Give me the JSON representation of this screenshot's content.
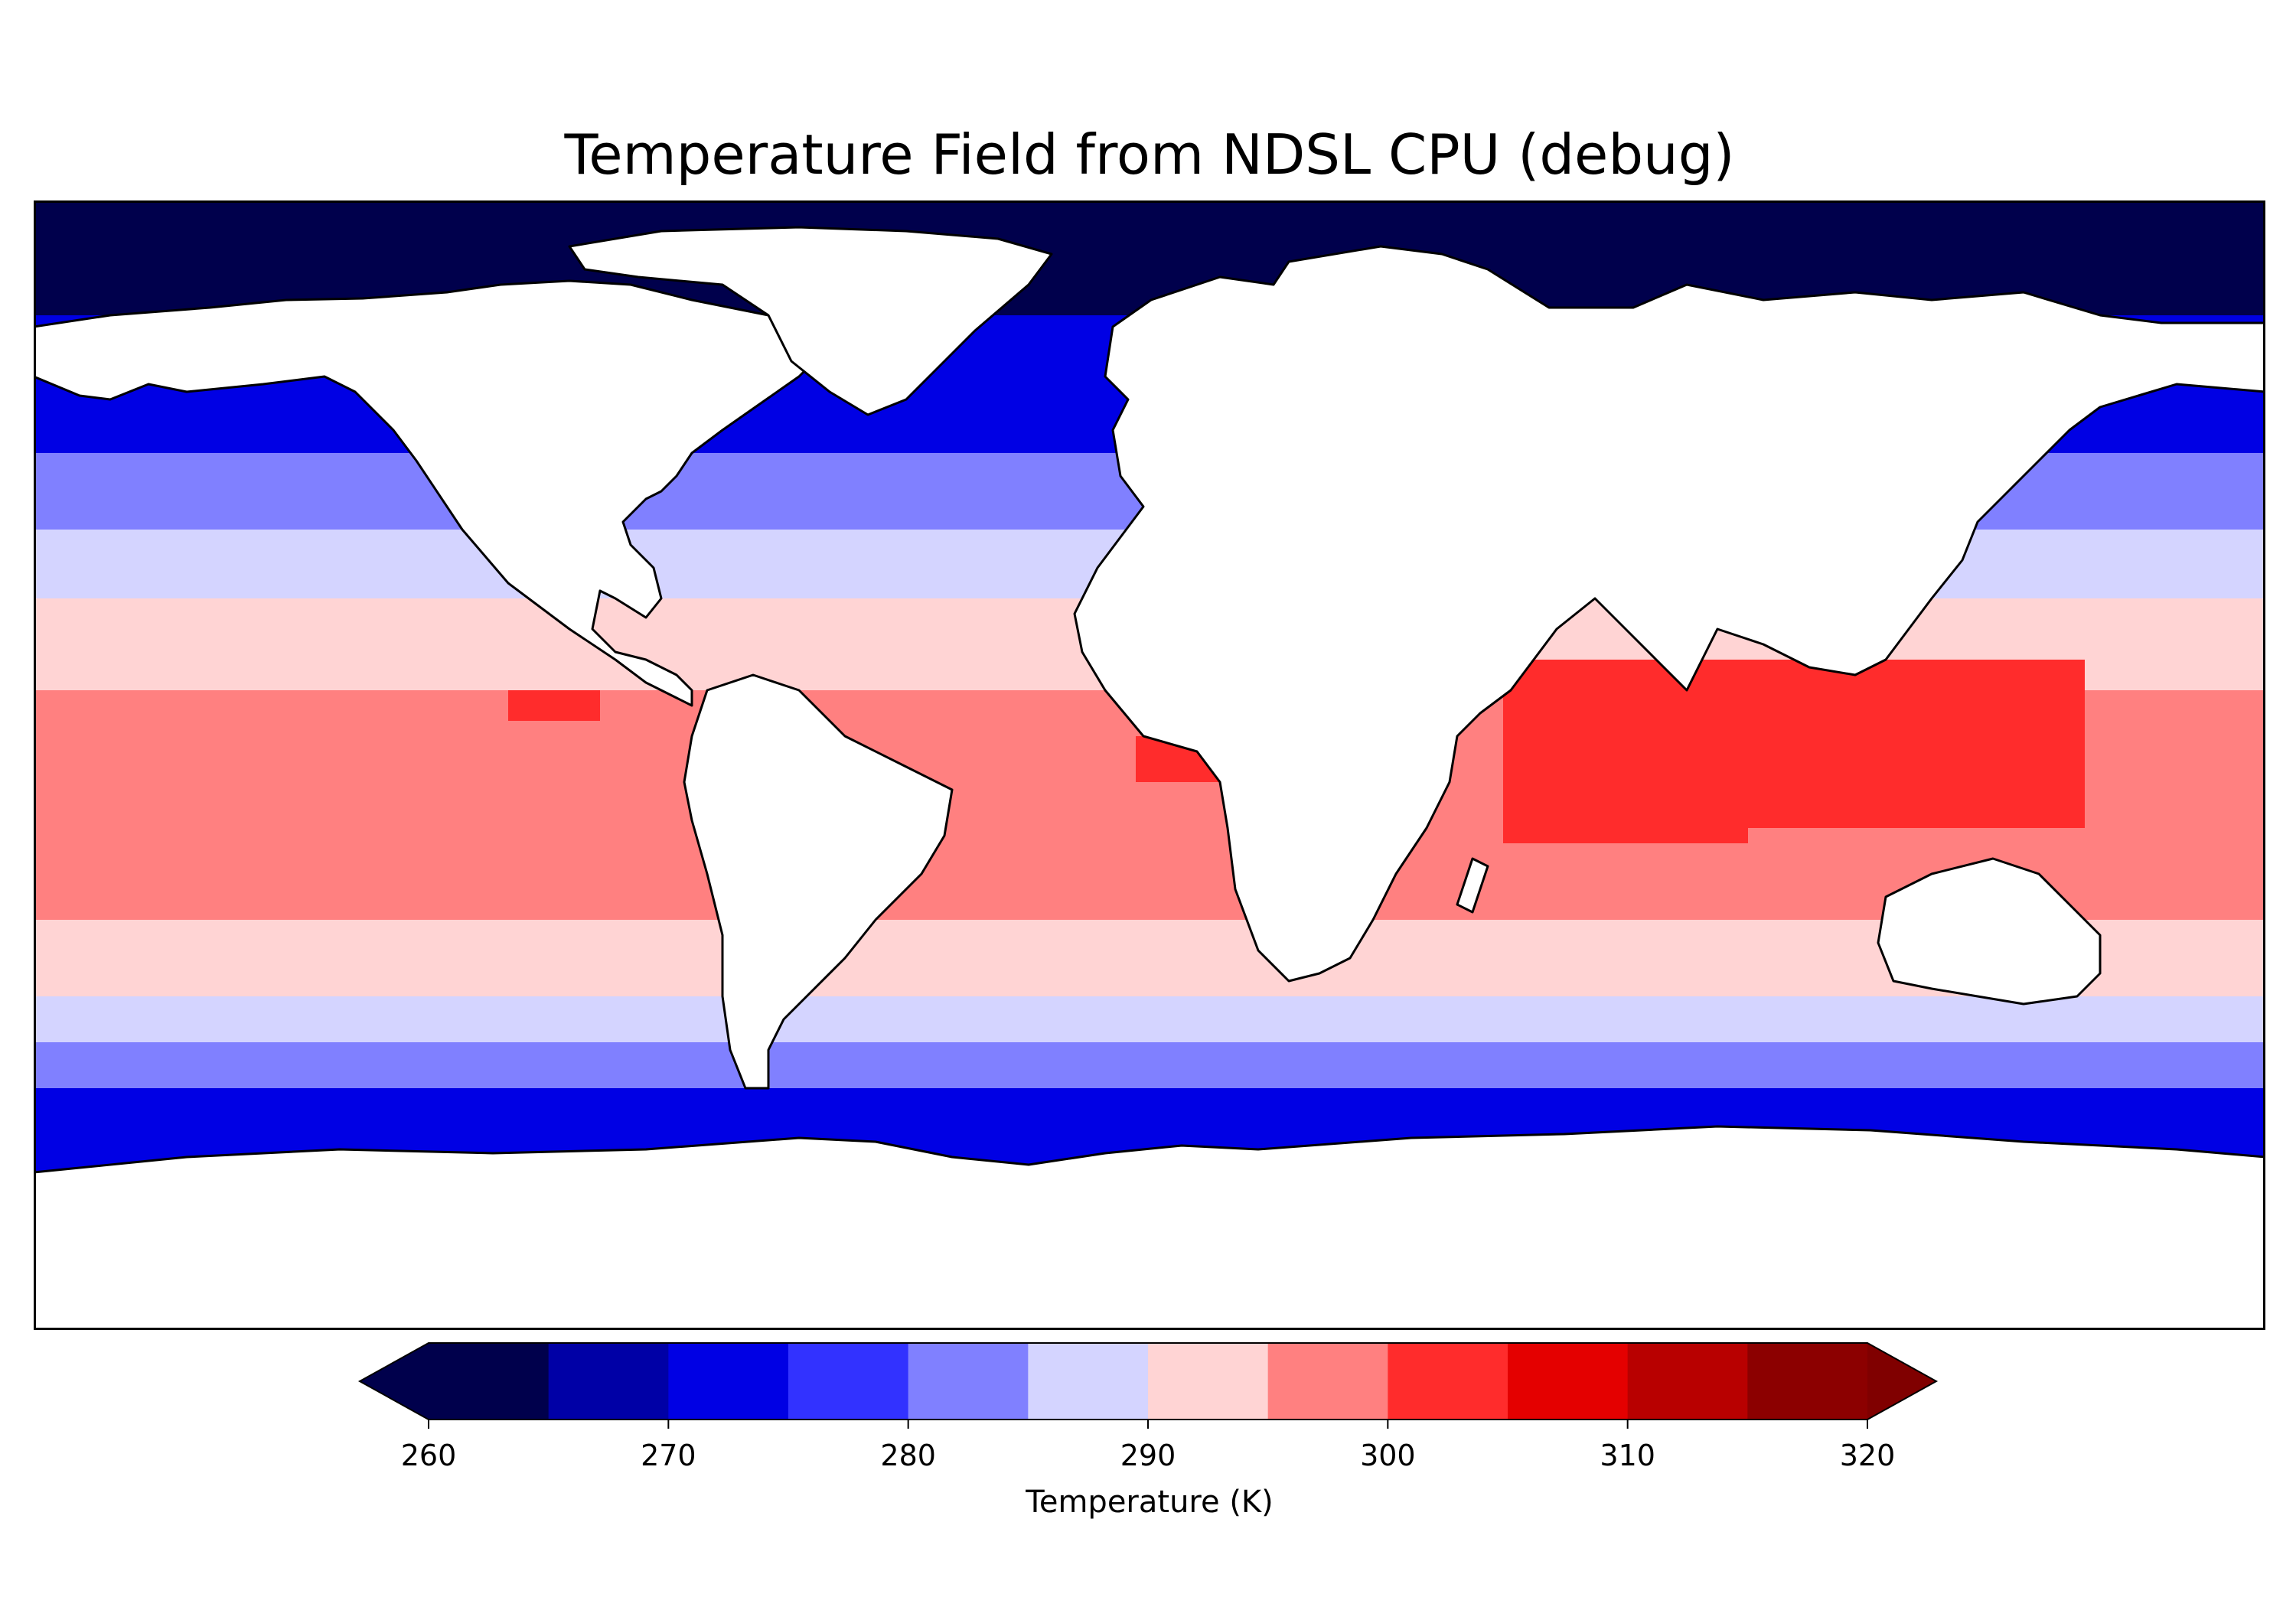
{
  "title": "Temperature Field from NDSL CPU (debug)",
  "colorbar": {
    "label": "Temperature (K)",
    "ticks": [
      "260",
      "270",
      "280",
      "290",
      "300",
      "310",
      "320"
    ],
    "tick_values": [
      260,
      270,
      280,
      290,
      300,
      310,
      320
    ],
    "levels": [
      260,
      265,
      270,
      275,
      280,
      285,
      290,
      295,
      300,
      305,
      310,
      315,
      320
    ],
    "colors": [
      "#00004c",
      "#0000a6",
      "#0000e4",
      "#3232ff",
      "#8080ff",
      "#d4d4ff",
      "#ffd4d4",
      "#ff8080",
      "#ff2c2c",
      "#e40000",
      "#b80000",
      "#8c0000"
    ],
    "under_color": "#00004c",
    "over_color": "#800000",
    "extend": "both"
  },
  "map": {
    "projection": "PlateCarree",
    "lon_range": [
      -180,
      180
    ],
    "lat_range": [
      -90,
      90
    ],
    "coastlines": true,
    "borders": true,
    "land_masked": true,
    "ocean_field_band_colors": {
      "north_polar": "#00004c",
      "north_cold": "#0000e4",
      "north_cool": "#8080ff",
      "north_mild": "#d4d4ff",
      "subtropical": "#ffd4d4",
      "tropical": "#ff8080",
      "warm_pool": "#ff2c2c",
      "south_mild": "#d4d4ff",
      "south_cool": "#8080ff",
      "south_cold": "#0000e4",
      "south_polar": "#00004c"
    }
  }
}
